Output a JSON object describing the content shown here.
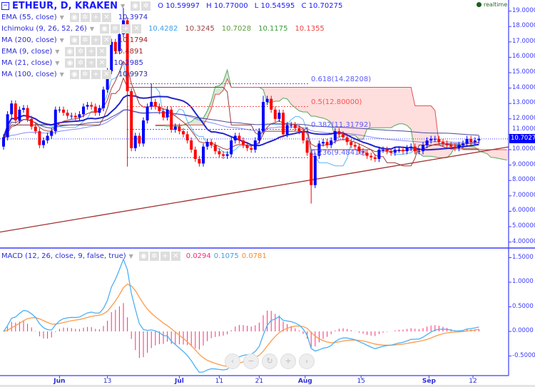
{
  "header": {
    "symbol": "ETHEUR, D, KRAKEN",
    "ohlc": {
      "o_label": "O",
      "o": "10.59997",
      "h_label": "H",
      "h": "10.77000",
      "l_label": "L",
      "l": "10.54595",
      "c_label": "C",
      "c": "10.70275"
    },
    "realtime": "realtime"
  },
  "indicators": [
    {
      "label": "EMA (55, close)",
      "values": [
        {
          "v": "10.3974",
          "color": "#2a2ad6"
        }
      ]
    },
    {
      "label": "Ichimoku (9, 26, 52, 26)",
      "values": [
        {
          "v": "10.4282",
          "color": "#3aa0f0"
        },
        {
          "v": "10.3245",
          "color": "#a04040"
        },
        {
          "v": "10.7028",
          "color": "#5a9a3a"
        },
        {
          "v": "10.1175",
          "color": "#3a9a3a"
        },
        {
          "v": "10.1355",
          "color": "#f04040"
        }
      ]
    },
    {
      "label": "MA (200, close)",
      "values": [
        {
          "v": "10.1794",
          "color": "#a02020"
        }
      ]
    },
    {
      "label": "EMA (9, close)",
      "values": [
        {
          "v": "10.4891",
          "color": "#a02020"
        }
      ]
    },
    {
      "label": "MA (21, close)",
      "values": [
        {
          "v": "10.2985",
          "color": "#2a2ad6"
        }
      ]
    },
    {
      "label": "MA (100, close)",
      "values": [
        {
          "v": "10.9973",
          "color": "#2a2a9a"
        }
      ]
    }
  ],
  "macd_legend": {
    "label": "MACD (12, 26, close, 9, false, true)",
    "values": [
      {
        "v": "0.0294",
        "color": "#ff2a7a"
      },
      {
        "v": "0.1075",
        "color": "#3aa0f0"
      },
      {
        "v": "0.0781",
        "color": "#ff8a2a"
      }
    ]
  },
  "nav_buttons": [
    {
      "name": "scroll-left",
      "glyph": "‹"
    },
    {
      "name": "zoom-out",
      "glyph": "−"
    },
    {
      "name": "reset",
      "glyph": "↻"
    },
    {
      "name": "zoom-in",
      "glyph": "+"
    },
    {
      "name": "scroll-right",
      "glyph": "›"
    }
  ],
  "price_label": "10.70275",
  "chart_data": [
    {
      "type": "candlestick",
      "title": "ETHEUR, D, KRAKEN",
      "ylim": [
        3.7,
        19.6
      ],
      "y_ticks": [
        "19.00000",
        "18.00000",
        "17.00000",
        "16.00000",
        "15.00000",
        "14.00000",
        "13.00000",
        "12.00000",
        "11.00000",
        "10.00000",
        "9.00000",
        "8.00000",
        "7.00000",
        "6.00000",
        "5.00000",
        "4.00000"
      ],
      "x_ticks": [
        {
          "label": "Jun",
          "day": 14,
          "bold": true
        },
        {
          "label": "13",
          "day": 26
        },
        {
          "label": "Jul",
          "day": 44,
          "bold": true
        },
        {
          "label": "11",
          "day": 54
        },
        {
          "label": "21",
          "day": 64
        },
        {
          "label": "Aug",
          "day": 75.5,
          "bold": true
        },
        {
          "label": "15",
          "day": 89.5
        },
        {
          "label": "Sep",
          "day": 106.5,
          "bold": true
        },
        {
          "label": "12",
          "day": 117.5
        }
      ],
      "close": [
        10.8,
        12.3,
        13.0,
        11.9,
        12.6,
        12.7,
        12.0,
        11.5,
        11.2,
        10.3,
        10.6,
        10.9,
        11.2,
        12.6,
        12.6,
        12.4,
        12.2,
        12.2,
        12.1,
        12.3,
        12.8,
        12.9,
        12.8,
        12.4,
        12.7,
        13.9,
        15.1,
        17.0,
        16.4,
        17.5,
        18.4,
        13.8,
        10.1,
        10.9,
        10.4,
        11.9,
        12.8,
        13.1,
        12.8,
        12.5,
        12.1,
        12.6,
        11.3,
        11.5,
        11.2,
        11.0,
        10.6,
        10.0,
        9.4,
        9.1,
        10.2,
        10.5,
        10.3,
        9.9,
        9.7,
        9.6,
        9.7,
        10.6,
        10.9,
        10.6,
        10.3,
        10.1,
        10.0,
        10.6,
        11.2,
        13.1,
        13.3,
        12.6,
        12.0,
        12.4,
        11.0,
        11.6,
        11.6,
        11.4,
        11.2,
        10.6,
        9.8,
        7.7,
        9.6,
        10.4,
        10.5,
        10.3,
        10.6,
        11.2,
        11.0,
        10.8,
        10.5,
        10.3,
        10.2,
        9.9,
        9.8,
        9.6,
        9.5,
        9.4,
        10.0,
        10.0,
        9.9,
        9.8,
        10.0,
        10.0,
        9.9,
        10.1,
        10.2,
        9.9,
        9.9,
        10.3,
        10.6,
        10.7,
        10.7,
        10.5,
        10.4,
        10.3,
        10.2,
        10.1,
        10.3,
        10.4,
        10.7,
        10.5,
        10.6,
        10.70275
      ],
      "first_open": 10.2,
      "big_wicks": [
        {
          "day": 30,
          "high": 19.2
        },
        {
          "day": 31,
          "low": 8.9
        },
        {
          "day": 37,
          "high": 14.3
        },
        {
          "day": 77,
          "low": 6.5
        },
        {
          "day": 65,
          "high": 13.5
        }
      ],
      "ma200_range": [
        4.65,
        10.1794
      ],
      "fib_levels": [
        {
          "ratio": "0.618",
          "value": 14.28208,
          "label": "0.618(14.28208)",
          "color": "#5a5aff"
        },
        {
          "ratio": "0.5",
          "value": 12.8,
          "label": "0.5(12.80000)",
          "color": "#ff5050"
        },
        {
          "ratio": "0.382",
          "value": 11.31792,
          "label": "0.382(11.31792)",
          "color": "#5a5aff"
        },
        {
          "ratio": "0.236",
          "value": 9.48416,
          "label": "0.236(9.48416)",
          "color": "#5a5aff"
        }
      ],
      "colors": {
        "up": "#0000ff",
        "down": "#ff0000",
        "ema55": "#2222cc",
        "ma21": "#3b3bf0",
        "ma100": "#4a4a99",
        "ema9": "#a83a3a",
        "ma200": "#a03030",
        "tenkan": "#5bb8f5",
        "kijun": "#9b3a3a",
        "span_a": "#5aa55a",
        "span_b": "#e05050"
      }
    },
    {
      "type": "macd",
      "title": "MACD (12, 26, close, 9, false, true)",
      "ylim": [
        -0.9,
        1.7
      ],
      "y_ticks": [
        "1.5000",
        "1.0000",
        "0.5000",
        "0.0000",
        "-0.5000"
      ],
      "colors": {
        "histogram": "#ff2a7a",
        "macd": "#4ab0f5",
        "signal": "#ff9a4a"
      }
    }
  ]
}
